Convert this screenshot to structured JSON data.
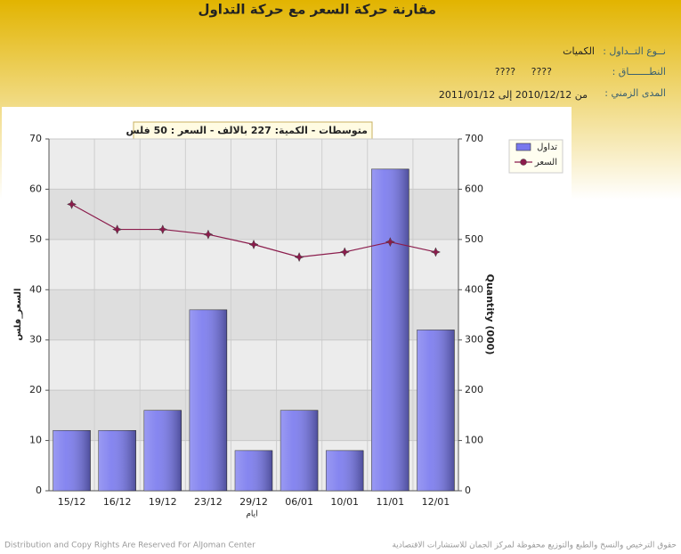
{
  "header": {
    "title": "مقارنة حركة السعر مع حركة التداول",
    "rows": [
      {
        "label": "نــوع التــداول :",
        "value": "الكميات"
      },
      {
        "label": "النطـــــــاق :",
        "value": "????     ????"
      },
      {
        "label": "المدى الزمني :",
        "value": "من 2010/12/12 إلى 2011/01/12"
      }
    ]
  },
  "chart_data": {
    "type": "combo",
    "annotation": "متوسطات - الكمية: 227 بالالف  - السعر : 50 فلس",
    "ylabel": "السعر_فلس",
    "y2label": "Quantity (000)",
    "xlabel": "ايام",
    "categories": [
      "15/12",
      "16/12",
      "19/12",
      "23/12",
      "29/12",
      "06/01",
      "10/01",
      "11/01",
      "12/01"
    ],
    "series": [
      {
        "name": "تداول",
        "type": "bar",
        "axis": "y2",
        "color": "#7878ee",
        "values": [
          120,
          120,
          160,
          360,
          80,
          160,
          80,
          640,
          320
        ]
      },
      {
        "name": "السعر",
        "type": "line",
        "color": "#8b1c4c",
        "values": [
          57,
          52,
          52,
          51,
          49,
          46.5,
          47.5,
          49.5,
          47.5
        ]
      }
    ],
    "ylim": [
      0,
      70
    ],
    "yticks": [
      0,
      10,
      20,
      30,
      40,
      50,
      60,
      70
    ],
    "y2lim": [
      0,
      700
    ],
    "y2ticks": [
      0,
      100,
      200,
      300,
      400,
      500,
      600,
      700
    ],
    "grid": true,
    "legend": "right"
  },
  "footer": {
    "left": "Distribution and Copy Rights Are Reserved For AlJoman Center",
    "right": "حقوق الترخيص والنسخ والطبع والتوزيع محفوظة لمركز الجمان للاستشارات الاقتصادية"
  }
}
